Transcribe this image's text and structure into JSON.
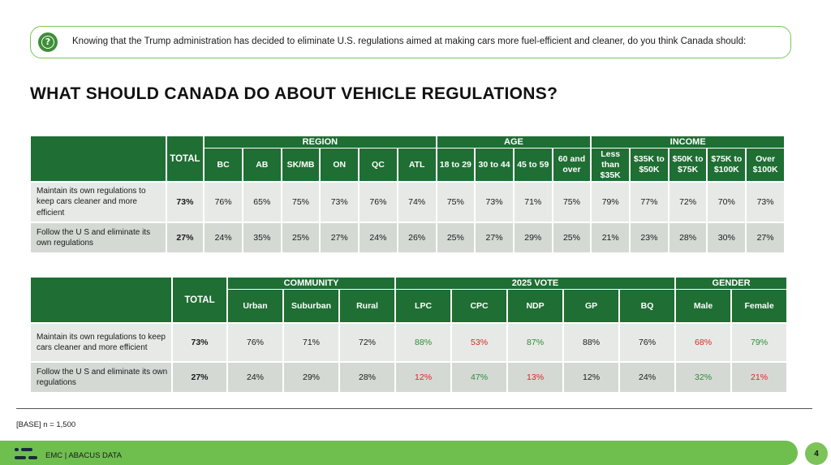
{
  "question": {
    "icon": "question-mark-icon",
    "text": "Knowing that the Trump administration has decided to eliminate U.S. regulations aimed at making cars more fuel-efficient and cleaner, do you think Canada should:"
  },
  "title": "WHAT SHOULD CANADA DO ABOUT VEHICLE REGULATIONS?",
  "table1": {
    "total_label": "TOTAL",
    "groups": [
      "REGION",
      "AGE",
      "INCOME"
    ],
    "columns": [
      "BC",
      "AB",
      "SK/MB",
      "ON",
      "QC",
      "ATL",
      "18 to 29",
      "30 to 44",
      "45 to 59",
      "60 and over",
      "Less than $35K",
      "$35K to $50K",
      "$50K to $75K",
      "$75K to $100K",
      "Over $100K"
    ],
    "rows": [
      {
        "label": "Maintain its own regulations to keep cars cleaner and more efficient",
        "total": "73%",
        "values": [
          "76%",
          "65%",
          "75%",
          "73%",
          "76%",
          "74%",
          "75%",
          "73%",
          "71%",
          "75%",
          "79%",
          "77%",
          "72%",
          "70%",
          "73%"
        ]
      },
      {
        "label": "Follow the U S  and eliminate its own regulations",
        "total": "27%",
        "values": [
          "24%",
          "35%",
          "25%",
          "27%",
          "24%",
          "26%",
          "25%",
          "27%",
          "29%",
          "25%",
          "21%",
          "23%",
          "28%",
          "30%",
          "27%"
        ]
      }
    ]
  },
  "table2": {
    "total_label": "TOTAL",
    "groups": [
      "COMMUNITY",
      "2025 VOTE",
      "GENDER"
    ],
    "columns": [
      "Urban",
      "Suburban",
      "Rural",
      "LPC",
      "CPC",
      "NDP",
      "GP",
      "BQ",
      "Male",
      "Female"
    ],
    "rows": [
      {
        "label": "Maintain its own regulations to keep cars cleaner and more efficient",
        "total": "73%",
        "values": [
          "76%",
          "71%",
          "72%",
          "88%",
          "53%",
          "87%",
          "88%",
          "76%",
          "68%",
          "79%"
        ]
      },
      {
        "label": "Follow the U S  and eliminate its own regulations",
        "total": "27%",
        "values": [
          "24%",
          "29%",
          "28%",
          "12%",
          "47%",
          "13%",
          "12%",
          "24%",
          "32%",
          "21%"
        ]
      }
    ],
    "value_colors": [
      [
        "dark",
        "dark",
        "dark",
        "green",
        "red",
        "green",
        "dark",
        "dark",
        "red",
        "green"
      ],
      [
        "dark",
        "dark",
        "dark",
        "red",
        "green",
        "red",
        "dark",
        "dark",
        "green",
        "red"
      ]
    ]
  },
  "base": "[BASE] n = 1,500",
  "footer": {
    "logo": "abacus-logo-icon",
    "text": "EMC  |  ABACUS DATA",
    "page_number": "4"
  },
  "colors": {
    "header_green": "#1f6e33",
    "accent_green": "#6fbf4f",
    "positive": "#2f8a35",
    "negative": "#e02424"
  }
}
